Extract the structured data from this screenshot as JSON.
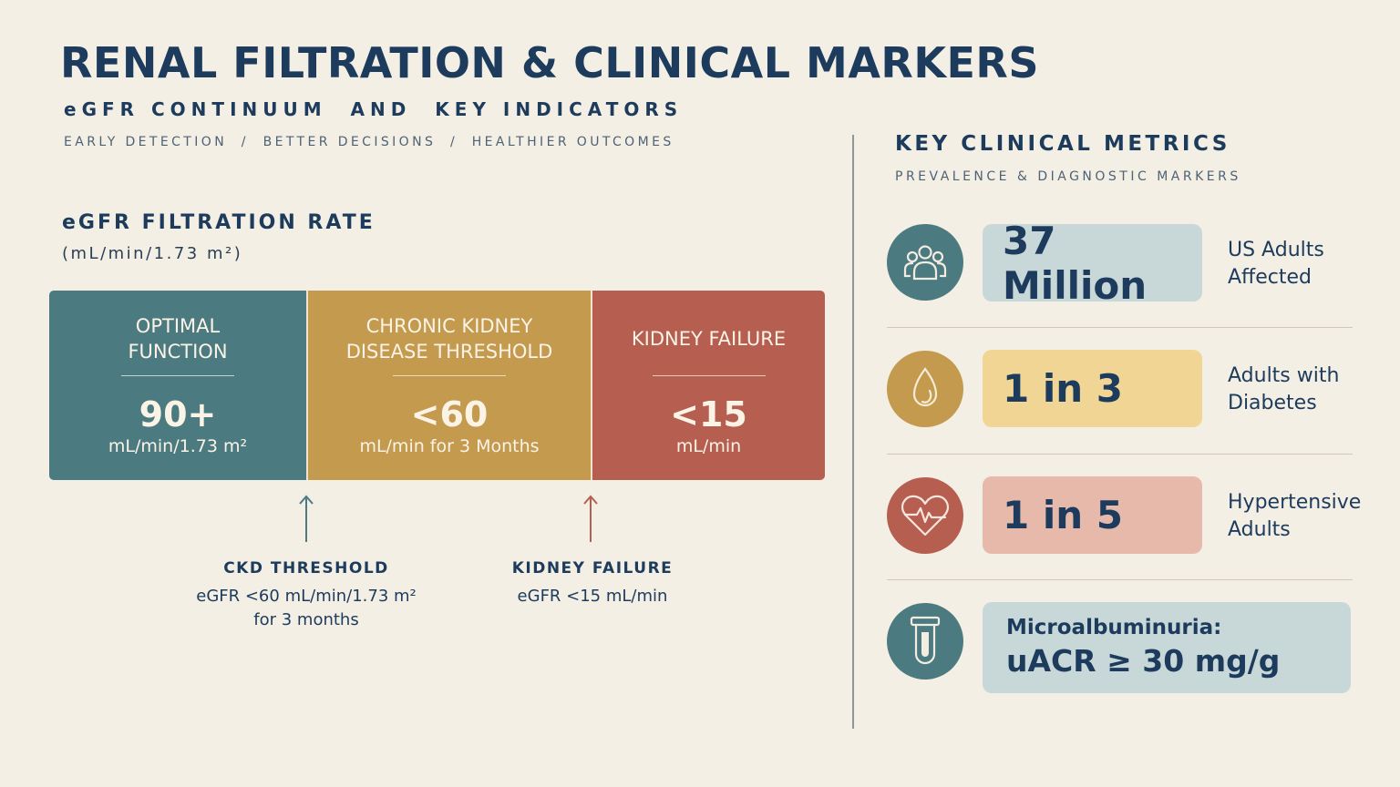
{
  "header": {
    "title": "RENAL FILTRATION & CLINICAL MARKERS",
    "subtitle": "eGFR CONTINUUM  AND  KEY INDICATORS",
    "tagline": "EARLY DETECTION  /  BETTER DECISIONS  /  HEALTHIER OUTCOMES"
  },
  "filtration": {
    "title": "eGFR FILTRATION RATE",
    "unit": "(mL/min/1.73 m²)",
    "segments": [
      {
        "label": "OPTIMAL FUNCTION",
        "value": "90+",
        "sub": "mL/min/1.73 m²",
        "color": "#4b7b80"
      },
      {
        "label": "CHRONIC KIDNEY DISEASE THRESHOLD",
        "value": "<60",
        "sub": "mL/min for 3 Months",
        "color": "#c39a4e"
      },
      {
        "label": "KIDNEY FAILURE",
        "value": "<15",
        "sub": "mL/min",
        "color": "#b65e50"
      }
    ],
    "markers": [
      {
        "title": "CKD THRESHOLD",
        "line1": "eGFR <60 mL/min/1.73 m²",
        "line2": "for 3 months",
        "color": "#4b7b80"
      },
      {
        "title": "KIDNEY FAILURE",
        "line1": "eGFR <15 mL/min",
        "line2": "",
        "color": "#b65e50"
      }
    ]
  },
  "metrics": {
    "title": "KEY CLINICAL METRICS",
    "subtitle": "PREVALENCE & DIAGNOSTIC MARKERS",
    "items": [
      {
        "icon": "people-group-icon",
        "value": "37 Million",
        "label_line1": "US Adults",
        "label_line2": "Affected",
        "circle_color": "#4b7b80",
        "pill_color": "#c8d8d8"
      },
      {
        "icon": "droplet-icon",
        "value": "1 in 3",
        "label_line1": "Adults with",
        "label_line2": "Diabetes",
        "circle_color": "#c39a4e",
        "pill_color": "#f1d595"
      },
      {
        "icon": "heart-pulse-icon",
        "value": "1 in 5",
        "label_line1": "Hypertensive",
        "label_line2": "Adults",
        "circle_color": "#b65e50",
        "pill_color": "#e6b9aa"
      },
      {
        "icon": "test-tube-icon",
        "value_line1": "Microalbuminuria:",
        "value_line2": "uACR ≥ 30 mg/g",
        "circle_color": "#4b7b80",
        "pill_color": "#c8d8d8"
      }
    ]
  }
}
